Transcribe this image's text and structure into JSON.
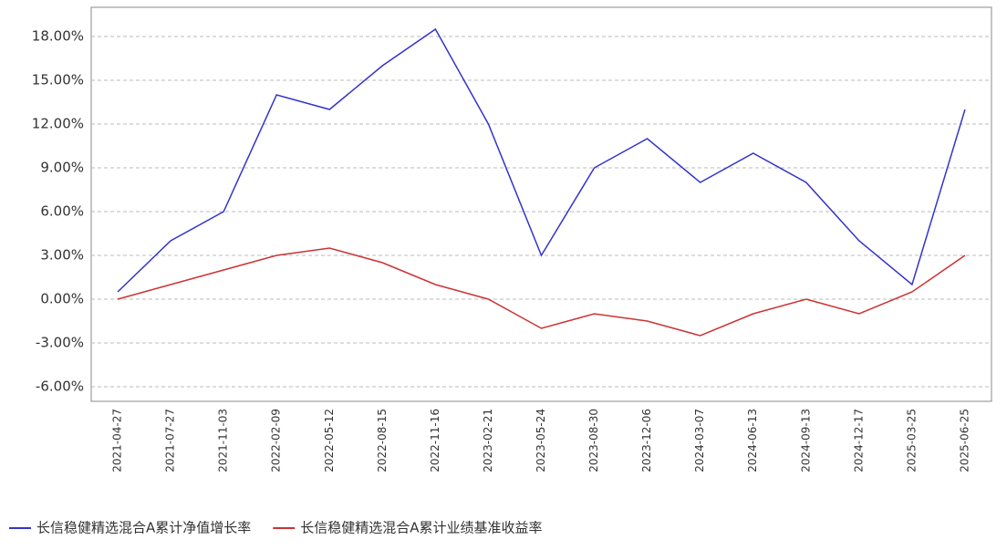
{
  "chart_data": {
    "type": "line",
    "categories": [
      "2021-04-27",
      "2021-07-27",
      "2021-11-03",
      "2022-02-09",
      "2022-05-12",
      "2022-08-15",
      "2022-11-16",
      "2023-02-21",
      "2023-05-24",
      "2023-08-30",
      "2023-12-06",
      "2024-03-07",
      "2024-06-13",
      "2024-09-13",
      "2024-12-17",
      "2025-03-25",
      "2025-06-25"
    ],
    "series": [
      {
        "name": "长信稳健精选混合A累计净值增长率",
        "color": "#3333cc",
        "values": [
          0.5,
          4,
          6,
          14,
          13,
          16,
          18.5,
          12,
          3,
          9,
          11,
          8,
          10,
          8,
          4,
          1,
          13
        ]
      },
      {
        "name": "长信稳健精选混合A累计业绩基准收益率",
        "color": "#cc3333",
        "values": [
          0,
          1,
          2,
          3,
          3.5,
          2.5,
          1,
          0,
          -2,
          -1,
          -1.5,
          -2.5,
          -1,
          0,
          -1,
          0.5,
          3
        ]
      }
    ],
    "ylim": [
      -7,
      20
    ],
    "yticks": [
      {
        "value": -6,
        "label": "-6.00%"
      },
      {
        "value": -3,
        "label": "-3.00%"
      },
      {
        "value": 0,
        "label": "0.00%"
      },
      {
        "value": 3,
        "label": "3.00%"
      },
      {
        "value": 6,
        "label": "6.00%"
      },
      {
        "value": 9,
        "label": "9.00%"
      },
      {
        "value": 12,
        "label": "12.00%"
      },
      {
        "value": 15,
        "label": "15.00%"
      },
      {
        "value": 18,
        "label": "18.00%"
      }
    ],
    "grid": true
  }
}
